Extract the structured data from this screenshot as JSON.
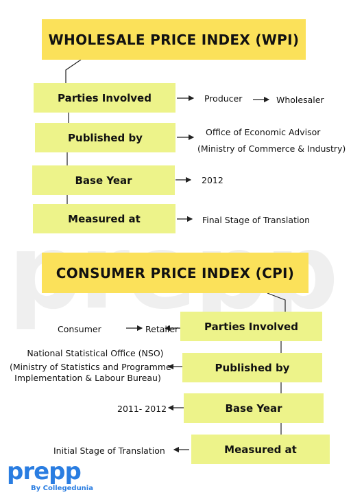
{
  "watermark": "prepp",
  "wpi": {
    "title": "WHOLESALE PRICE INDEX (WPI)",
    "rows": [
      {
        "label": "Parties Involved",
        "value_a": "Producer",
        "value_b": "Wholesaler"
      },
      {
        "label": "Published by",
        "line1": "Office of Economic Advisor",
        "line2": "(Ministry of Commerce & Industry)"
      },
      {
        "label": "Base Year",
        "value": "2012"
      },
      {
        "label": "Measured at",
        "value": "Final Stage of  Translation"
      }
    ]
  },
  "cpi": {
    "title": "CONSUMER PRICE INDEX (CPI)",
    "rows": [
      {
        "label": "Parties Involved",
        "value_a": "Consumer",
        "value_b": "Retailer"
      },
      {
        "label": "Published by",
        "line1": "National Statistical Office (NSO)",
        "line2": "(Ministry of Statistics and Programme",
        "line3": "Implementation & Labour Bureau)"
      },
      {
        "label": "Base Year",
        "value": "2011- 2012"
      },
      {
        "label": "Measured at",
        "value": "Initial Stage of  Translation"
      }
    ]
  },
  "logo": {
    "word": "prepp",
    "sub": "By Collegedunia"
  },
  "colors": {
    "title_bg": "#fbe15a",
    "box_bg": "#edf38a",
    "logo": "#2a7de1",
    "watermark": "#efefef"
  }
}
